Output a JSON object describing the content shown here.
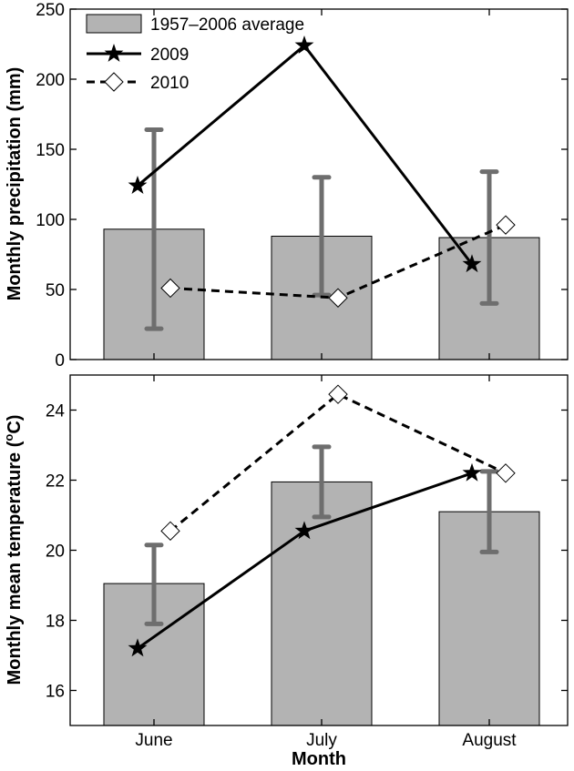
{
  "chart_data": [
    {
      "type": "bar",
      "categories": [
        "June",
        "July",
        "August"
      ],
      "ylabel": "Monthly precipitation (mm)",
      "ylim": [
        0,
        250
      ],
      "yticks": [
        0,
        50,
        100,
        150,
        200,
        250
      ],
      "series": [
        {
          "name": "1957–2006 average",
          "kind": "bar",
          "values": [
            93,
            88,
            87
          ],
          "err_low": [
            22,
            46,
            40
          ],
          "err_high": [
            164,
            130,
            134
          ],
          "color": "#b3b3b3",
          "error_color": "#6e6e6e"
        },
        {
          "name": "2009",
          "kind": "line",
          "style": "solid",
          "marker": "star",
          "values": [
            124,
            224,
            68
          ]
        },
        {
          "name": "2010",
          "kind": "line",
          "style": "dashed",
          "marker": "diamond",
          "values": [
            51,
            44,
            96
          ]
        }
      ],
      "legend_position": "top-left"
    },
    {
      "type": "bar",
      "categories": [
        "June",
        "July",
        "August"
      ],
      "xlabel": "Month",
      "ylabel": "Monthly mean temperature (°C)",
      "ylabel_parts": {
        "before": "Monthly mean temperature (",
        "sup": "o",
        "after": "C)"
      },
      "ylim": [
        15,
        25
      ],
      "yticks": [
        16,
        18,
        20,
        22,
        24
      ],
      "series": [
        {
          "name": "1957–2006 average",
          "kind": "bar",
          "values": [
            19.05,
            21.95,
            21.1
          ],
          "err_low": [
            17.9,
            20.95,
            19.95
          ],
          "err_high": [
            20.15,
            22.95,
            22.25
          ],
          "color": "#b3b3b3",
          "error_color": "#6e6e6e"
        },
        {
          "name": "2009",
          "kind": "line",
          "style": "solid",
          "marker": "star",
          "values": [
            17.2,
            20.55,
            22.2
          ]
        },
        {
          "name": "2010",
          "kind": "line",
          "style": "dashed",
          "marker": "diamond",
          "values": [
            20.55,
            24.45,
            22.2
          ]
        }
      ]
    }
  ]
}
